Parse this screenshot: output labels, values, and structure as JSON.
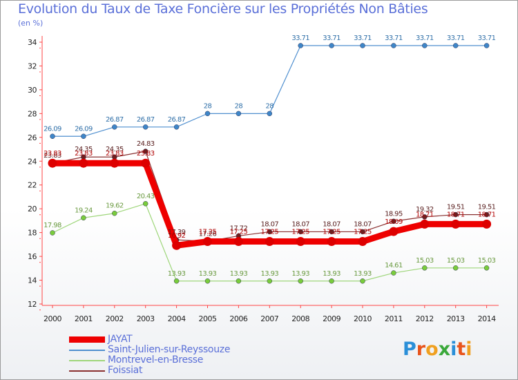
{
  "header": {
    "title": "Evolution du Taux de Taxe Foncière sur les Propriétés Non Bâties",
    "unit": "(en %)"
  },
  "logo": {
    "letters": [
      "P",
      "r",
      "o",
      "x",
      "i",
      "t",
      "i"
    ],
    "colors": [
      "#2a8fd8",
      "#e8541c",
      "#f0a020",
      "#3aa83a",
      "#2a8fd8",
      "#e8541c",
      "#f0a020"
    ]
  },
  "chart_data": {
    "type": "line",
    "x": [
      "2000",
      "2001",
      "2002",
      "2003",
      "2004",
      "2005",
      "2006",
      "2007",
      "2008",
      "2009",
      "2010",
      "2011",
      "2012",
      "2013",
      "2014"
    ],
    "ylim": [
      12,
      34
    ],
    "yticks": [
      12,
      14,
      16,
      18,
      20,
      22,
      24,
      26,
      28,
      30,
      32,
      34
    ],
    "grid": false,
    "legend_position": "bottom-left",
    "series": [
      {
        "name": "Saint-Julien-sur-Reyssouze",
        "color": "#4f8fcf",
        "dot": "#3e86c8",
        "values": [
          26.09,
          26.09,
          26.87,
          26.87,
          26.87,
          28,
          28,
          28,
          33.71,
          33.71,
          33.71,
          33.71,
          33.71,
          33.71,
          33.71
        ],
        "labels": [
          "26.09",
          "26.09",
          "26.87",
          "26.87",
          "26.87",
          "28",
          "28",
          "28",
          "33.71",
          "33.71",
          "33.71",
          "33.71",
          "33.71",
          "33.71",
          "33.71"
        ]
      },
      {
        "name": "Montrevel-en-Bresse",
        "color": "#9ed67a",
        "dot": "#79cc3c",
        "values": [
          17.98,
          19.24,
          19.62,
          20.43,
          13.93,
          13.93,
          13.93,
          13.93,
          13.93,
          13.93,
          13.93,
          14.61,
          15.03,
          15.03,
          15.03
        ],
        "labels": [
          "17.98",
          "19.24",
          "19.62",
          "20.43",
          "13.93",
          "13.93",
          "13.93",
          "13.93",
          "13.93",
          "13.93",
          "13.93",
          "14.61",
          "15.03",
          "15.03",
          "15.03"
        ]
      },
      {
        "name": "Foissiat",
        "color": "#8a3030",
        "dot": "#6e1f1f",
        "values": [
          23.83,
          24.35,
          24.35,
          24.83,
          17.39,
          17.26,
          17.72,
          18.07,
          18.07,
          18.07,
          18.07,
          18.95,
          19.32,
          19.51,
          19.51
        ],
        "labels": [
          "23.83",
          "24.35",
          "24.35",
          "24.83",
          "17.39",
          "17.26",
          "17.72",
          "18.07",
          "18.07",
          "18.07",
          "18.07",
          "18.95",
          "19.32",
          "19.51",
          "19.51"
        ]
      },
      {
        "name": "JAYAT",
        "color": "#ee0000",
        "dot": "#dd0000",
        "values": [
          23.83,
          23.83,
          23.83,
          23.83,
          16.92,
          17.25,
          17.25,
          17.25,
          17.25,
          17.25,
          17.25,
          18.09,
          18.71,
          18.71,
          18.71
        ],
        "labels": [
          "23.83",
          "23.83",
          "23.83",
          "23.83",
          "16.92",
          "17.25",
          "17.25",
          "17.25",
          "17.25",
          "17.25",
          "17.25",
          "18.09",
          "18.71",
          "18.71",
          "18.71"
        ]
      }
    ],
    "legend": [
      "JAYAT",
      "Saint-Julien-sur-Reyssouze",
      "Montrevel-en-Bresse",
      "Foissiat"
    ]
  }
}
